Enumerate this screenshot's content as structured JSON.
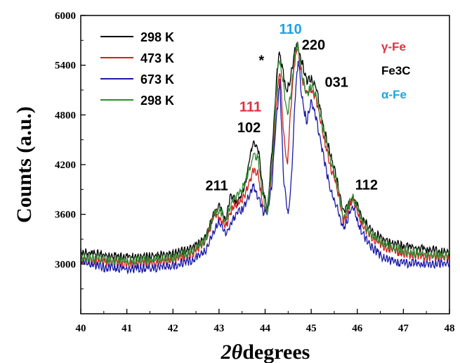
{
  "chart_data": {
    "type": "line",
    "title": "",
    "xlabel": "2θ degrees",
    "ylabel": "Counts (a.u.)",
    "xlim": [
      40,
      48
    ],
    "ylim": [
      2400,
      6000
    ],
    "x_ticks": [
      40,
      41,
      42,
      43,
      44,
      45,
      46,
      47,
      48
    ],
    "y_ticks": [
      3000,
      3600,
      4200,
      4800,
      5400,
      6000
    ],
    "grid": false,
    "legend_position": "top-left",
    "series": [
      {
        "name": "298 K",
        "color": "#000000",
        "points": [
          [
            40.0,
            3140
          ],
          [
            40.5,
            3110
          ],
          [
            41.0,
            3080
          ],
          [
            41.5,
            3090
          ],
          [
            42.0,
            3120
          ],
          [
            42.4,
            3190
          ],
          [
            42.7,
            3320
          ],
          [
            42.9,
            3620
          ],
          [
            43.0,
            3700
          ],
          [
            43.15,
            3520
          ],
          [
            43.25,
            3840
          ],
          [
            43.4,
            3740
          ],
          [
            43.55,
            3920
          ],
          [
            43.7,
            4380
          ],
          [
            43.75,
            4460
          ],
          [
            43.85,
            4380
          ],
          [
            43.95,
            3920
          ],
          [
            44.05,
            3660
          ],
          [
            44.15,
            4350
          ],
          [
            44.25,
            5250
          ],
          [
            44.3,
            5560
          ],
          [
            44.38,
            5350
          ],
          [
            44.45,
            5080
          ],
          [
            44.55,
            5240
          ],
          [
            44.65,
            5590
          ],
          [
            44.7,
            5660
          ],
          [
            44.8,
            5440
          ],
          [
            44.9,
            5200
          ],
          [
            45.0,
            5230
          ],
          [
            45.1,
            5150
          ],
          [
            45.25,
            4700
          ],
          [
            45.4,
            4350
          ],
          [
            45.55,
            4050
          ],
          [
            45.7,
            3620
          ],
          [
            45.8,
            3700
          ],
          [
            45.9,
            3800
          ],
          [
            46.0,
            3700
          ],
          [
            46.1,
            3560
          ],
          [
            46.3,
            3400
          ],
          [
            46.6,
            3280
          ],
          [
            47.0,
            3210
          ],
          [
            47.5,
            3180
          ],
          [
            48.0,
            3130
          ]
        ]
      },
      {
        "name": "473 K",
        "color": "#d42020",
        "points": [
          [
            40.0,
            3060
          ],
          [
            40.5,
            3030
          ],
          [
            41.0,
            3000
          ],
          [
            41.5,
            3010
          ],
          [
            42.0,
            3040
          ],
          [
            42.4,
            3120
          ],
          [
            42.7,
            3260
          ],
          [
            42.9,
            3600
          ],
          [
            43.0,
            3580
          ],
          [
            43.15,
            3450
          ],
          [
            43.3,
            3700
          ],
          [
            43.5,
            3760
          ],
          [
            43.7,
            4050
          ],
          [
            43.75,
            4140
          ],
          [
            43.85,
            4080
          ],
          [
            43.95,
            3700
          ],
          [
            44.05,
            3630
          ],
          [
            44.15,
            4150
          ],
          [
            44.25,
            4980
          ],
          [
            44.32,
            5350
          ],
          [
            44.4,
            4600
          ],
          [
            44.48,
            4180
          ],
          [
            44.55,
            4820
          ],
          [
            44.62,
            5340
          ],
          [
            44.7,
            5660
          ],
          [
            44.8,
            5250
          ],
          [
            44.9,
            5050
          ],
          [
            45.0,
            5120
          ],
          [
            45.1,
            5000
          ],
          [
            45.25,
            4600
          ],
          [
            45.4,
            4200
          ],
          [
            45.55,
            3950
          ],
          [
            45.7,
            3500
          ],
          [
            45.8,
            3640
          ],
          [
            45.9,
            3780
          ],
          [
            46.0,
            3650
          ],
          [
            46.1,
            3480
          ],
          [
            46.3,
            3330
          ],
          [
            46.6,
            3200
          ],
          [
            47.0,
            3130
          ],
          [
            47.5,
            3090
          ],
          [
            48.0,
            3080
          ]
        ]
      },
      {
        "name": "673 K",
        "color": "#1a1aa8",
        "points": [
          [
            40.0,
            3040
          ],
          [
            40.5,
            2960
          ],
          [
            41.0,
            2940
          ],
          [
            41.5,
            2950
          ],
          [
            42.0,
            2980
          ],
          [
            42.4,
            3040
          ],
          [
            42.7,
            3160
          ],
          [
            42.9,
            3400
          ],
          [
            43.0,
            3500
          ],
          [
            43.15,
            3350
          ],
          [
            43.3,
            3550
          ],
          [
            43.5,
            3660
          ],
          [
            43.7,
            3870
          ],
          [
            43.75,
            3950
          ],
          [
            43.85,
            3800
          ],
          [
            43.95,
            3640
          ],
          [
            44.05,
            3620
          ],
          [
            44.15,
            3980
          ],
          [
            44.25,
            4800
          ],
          [
            44.32,
            5190
          ],
          [
            44.4,
            4050
          ],
          [
            44.5,
            3560
          ],
          [
            44.57,
            4000
          ],
          [
            44.65,
            5020
          ],
          [
            44.72,
            5480
          ],
          [
            44.8,
            5000
          ],
          [
            44.9,
            4720
          ],
          [
            45.0,
            4950
          ],
          [
            45.1,
            4780
          ],
          [
            45.25,
            4350
          ],
          [
            45.4,
            3930
          ],
          [
            45.55,
            3700
          ],
          [
            45.7,
            3420
          ],
          [
            45.8,
            3560
          ],
          [
            45.9,
            3700
          ],
          [
            46.0,
            3540
          ],
          [
            46.1,
            3380
          ],
          [
            46.3,
            3210
          ],
          [
            46.6,
            3060
          ],
          [
            47.0,
            3010
          ],
          [
            47.5,
            3000
          ],
          [
            48.0,
            3010
          ]
        ]
      },
      {
        "name": "298 K",
        "color": "#2f8a2f",
        "points": [
          [
            40.0,
            3080
          ],
          [
            40.5,
            3060
          ],
          [
            41.0,
            3040
          ],
          [
            41.5,
            3050
          ],
          [
            42.0,
            3080
          ],
          [
            42.4,
            3150
          ],
          [
            42.7,
            3280
          ],
          [
            42.9,
            3600
          ],
          [
            43.0,
            3660
          ],
          [
            43.15,
            3520
          ],
          [
            43.3,
            3780
          ],
          [
            43.5,
            3900
          ],
          [
            43.7,
            4200
          ],
          [
            43.75,
            4350
          ],
          [
            43.85,
            4260
          ],
          [
            43.95,
            3820
          ],
          [
            44.05,
            3620
          ],
          [
            44.15,
            4200
          ],
          [
            44.25,
            5150
          ],
          [
            44.3,
            5480
          ],
          [
            44.4,
            5150
          ],
          [
            44.48,
            4800
          ],
          [
            44.56,
            5050
          ],
          [
            44.62,
            5430
          ],
          [
            44.7,
            5680
          ],
          [
            44.8,
            5280
          ],
          [
            44.9,
            5050
          ],
          [
            45.0,
            5150
          ],
          [
            45.1,
            5050
          ],
          [
            45.25,
            4650
          ],
          [
            45.4,
            4300
          ],
          [
            45.55,
            4000
          ],
          [
            45.7,
            3560
          ],
          [
            45.8,
            3690
          ],
          [
            45.9,
            3820
          ],
          [
            46.0,
            3680
          ],
          [
            46.1,
            3520
          ],
          [
            46.3,
            3360
          ],
          [
            46.6,
            3230
          ],
          [
            47.0,
            3160
          ],
          [
            47.5,
            3120
          ],
          [
            48.0,
            3100
          ]
        ]
      }
    ],
    "annotations": [
      {
        "text": "211",
        "x": 42.95,
        "y": 3890,
        "color": "#000000"
      },
      {
        "text": "111",
        "x": 43.68,
        "y": 4840,
        "color": "#e0303c"
      },
      {
        "text": "102",
        "x": 43.65,
        "y": 4590,
        "color": "#000000"
      },
      {
        "text": "*",
        "x": 43.92,
        "y": 5400,
        "color": "#000000"
      },
      {
        "text": "110",
        "x": 44.55,
        "y": 5780,
        "color": "#1ea3e0"
      },
      {
        "text": "220",
        "x": 45.05,
        "y": 5590,
        "color": "#000000"
      },
      {
        "text": "031",
        "x": 45.55,
        "y": 5140,
        "color": "#000000"
      },
      {
        "text": "112",
        "x": 46.2,
        "y": 3900,
        "color": "#000000"
      }
    ],
    "phase_legend": [
      {
        "text": "γ-Fe",
        "color": "#e0303c"
      },
      {
        "text": "Fe3C",
        "color": "#000000"
      },
      {
        "text": "α-Fe",
        "color": "#1ea3e0"
      }
    ]
  }
}
